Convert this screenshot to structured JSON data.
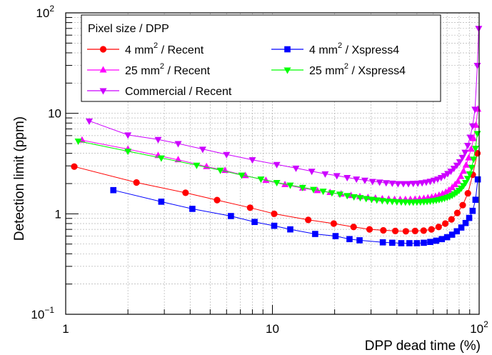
{
  "chart_data": {
    "type": "line",
    "xlabel": "DPP dead time (%)",
    "ylabel": "Detection limit (ppm)",
    "xscale": "log",
    "yscale": "log",
    "xlim": [
      1,
      100
    ],
    "ylim": [
      0.1,
      100
    ],
    "grid": true,
    "legend_placement": "top-left",
    "legend_title": "Pixel size / DPP",
    "x_tick_labels": [
      {
        "value": 1,
        "base": "1",
        "exp": ""
      },
      {
        "value": 10,
        "base": "10",
        "exp": ""
      },
      {
        "value": 100,
        "base": "10",
        "exp": "2"
      }
    ],
    "y_tick_labels": [
      {
        "value": 0.1,
        "base": "10",
        "exp": "−1"
      },
      {
        "value": 1,
        "base": "1",
        "exp": ""
      },
      {
        "value": 10,
        "base": "10",
        "exp": ""
      },
      {
        "value": 100,
        "base": "10",
        "exp": "2"
      }
    ],
    "series": [
      {
        "name": "4 mm² / Recent",
        "label_parts": [
          "4 mm",
          "2",
          " / Recent"
        ],
        "color": "#ff0000",
        "marker": "circle",
        "x": [
          1.1,
          2.2,
          3.8,
          5.4,
          7.8,
          10.2,
          14.9,
          19.8,
          24.7,
          29.5,
          34.4,
          39.3,
          44.2,
          49,
          53.9,
          58.8,
          63.7,
          68.6,
          73.5,
          78.4,
          83.3,
          88.2,
          93.1,
          98
        ],
        "y": [
          2.95,
          2.05,
          1.62,
          1.37,
          1.15,
          1.0,
          0.87,
          0.8,
          0.74,
          0.7,
          0.685,
          0.675,
          0.67,
          0.675,
          0.68,
          0.7,
          0.74,
          0.8,
          0.88,
          1.02,
          1.22,
          1.6,
          2.45,
          4.0
        ]
      },
      {
        "name": "25 mm² / Recent",
        "label_parts": [
          "25 mm",
          "2",
          " / Recent"
        ],
        "color": "#ff00ff",
        "marker": "triangle-up",
        "x": [
          1.2,
          2.0,
          2.8,
          3.5,
          4.8,
          5.9,
          7.4,
          9.3,
          11.5,
          14,
          16.5,
          19,
          21.5,
          24,
          26.5,
          29,
          31.5,
          34,
          36.5,
          39,
          41.5,
          44,
          46.5,
          49,
          51.5,
          54,
          56.5,
          59,
          61.5,
          64,
          66.5,
          69,
          71.5,
          74,
          76.5,
          79,
          81.5,
          84,
          86.5,
          89,
          91.5,
          94,
          96.5,
          98.5
        ],
        "y": [
          5.4,
          4.4,
          3.8,
          3.45,
          2.95,
          2.7,
          2.4,
          2.15,
          1.95,
          1.8,
          1.7,
          1.63,
          1.57,
          1.52,
          1.48,
          1.45,
          1.43,
          1.41,
          1.4,
          1.39,
          1.385,
          1.385,
          1.39,
          1.395,
          1.405,
          1.42,
          1.44,
          1.46,
          1.49,
          1.53,
          1.58,
          1.64,
          1.72,
          1.82,
          1.95,
          2.1,
          2.35,
          2.65,
          3.05,
          3.6,
          4.4,
          5.6,
          7.6,
          11
        ]
      },
      {
        "name": "Commercial / Recent",
        "label_parts": [
          "Commercial / Recent"
        ],
        "color": "#cc00ff",
        "marker": "triangle-down",
        "x": [
          1.3,
          2.0,
          2.8,
          3.5,
          4.6,
          6.0,
          8.0,
          10.5,
          13,
          15.5,
          18,
          20.5,
          23,
          25.5,
          28,
          30.5,
          33,
          35.5,
          38,
          40.5,
          43,
          45.5,
          48,
          50.5,
          53,
          55.5,
          58,
          60.5,
          63,
          65.5,
          68,
          70.5,
          73,
          75.5,
          78,
          80.5,
          83,
          85.5,
          88,
          90.5,
          93,
          95.5,
          98,
          99.5
        ],
        "y": [
          8.4,
          6.1,
          5.5,
          5.0,
          4.4,
          3.9,
          3.45,
          3.1,
          2.85,
          2.65,
          2.5,
          2.4,
          2.3,
          2.22,
          2.16,
          2.1,
          2.07,
          2.04,
          2.02,
          2.0,
          2.0,
          2.0,
          2.01,
          2.02,
          2.04,
          2.07,
          2.11,
          2.16,
          2.22,
          2.3,
          2.4,
          2.52,
          2.66,
          2.84,
          3.05,
          3.3,
          3.65,
          4.1,
          4.8,
          5.8,
          7.5,
          11,
          30,
          70
        ]
      },
      {
        "name": "4 mm² / Xspress4",
        "label_parts": [
          "4 mm",
          "2",
          " / Xspress4"
        ],
        "color": "#0000ff",
        "marker": "square",
        "x": [
          1.7,
          2.9,
          4.1,
          6.3,
          8.2,
          10.2,
          12.2,
          16.1,
          20.2,
          23.6,
          26.4,
          34.2,
          38,
          42,
          46,
          50,
          54,
          58,
          62,
          66,
          70,
          74,
          78,
          82,
          86,
          89.5,
          93,
          96,
          98.5
        ],
        "y": [
          1.72,
          1.32,
          1.12,
          0.95,
          0.83,
          0.76,
          0.7,
          0.63,
          0.6,
          0.56,
          0.545,
          0.52,
          0.515,
          0.51,
          0.51,
          0.51,
          0.515,
          0.525,
          0.54,
          0.56,
          0.585,
          0.62,
          0.67,
          0.73,
          0.81,
          0.91,
          1.07,
          1.38,
          2.2
        ]
      },
      {
        "name": "25 mm² / Xspress4",
        "label_parts": [
          "25 mm",
          "2",
          " / Xspress4"
        ],
        "color": "#00ff00",
        "marker": "triangle-down",
        "x": [
          1.15,
          2.0,
          2.9,
          4.3,
          5.6,
          7.1,
          8.8,
          10.5,
          12.2,
          14,
          15.8,
          17.6,
          19.4,
          21.2,
          23,
          24.8,
          26.6,
          28.4,
          30.2,
          32,
          34,
          36,
          38,
          40,
          42,
          44,
          46,
          48,
          50,
          52,
          54,
          56,
          58,
          60,
          62,
          64,
          66,
          68,
          70,
          72,
          74,
          76,
          78,
          80,
          82,
          84,
          86,
          88,
          90,
          92,
          94,
          96,
          98
        ],
        "y": [
          5.3,
          4.2,
          3.6,
          3.05,
          2.72,
          2.43,
          2.22,
          2.05,
          1.93,
          1.83,
          1.75,
          1.68,
          1.62,
          1.57,
          1.52,
          1.48,
          1.45,
          1.42,
          1.395,
          1.375,
          1.355,
          1.34,
          1.33,
          1.32,
          1.315,
          1.31,
          1.31,
          1.31,
          1.312,
          1.316,
          1.322,
          1.33,
          1.34,
          1.352,
          1.367,
          1.385,
          1.405,
          1.43,
          1.46,
          1.49,
          1.53,
          1.58,
          1.64,
          1.71,
          1.8,
          1.91,
          2.05,
          2.25,
          2.5,
          2.9,
          3.5,
          4.5,
          6.3
        ]
      }
    ]
  }
}
